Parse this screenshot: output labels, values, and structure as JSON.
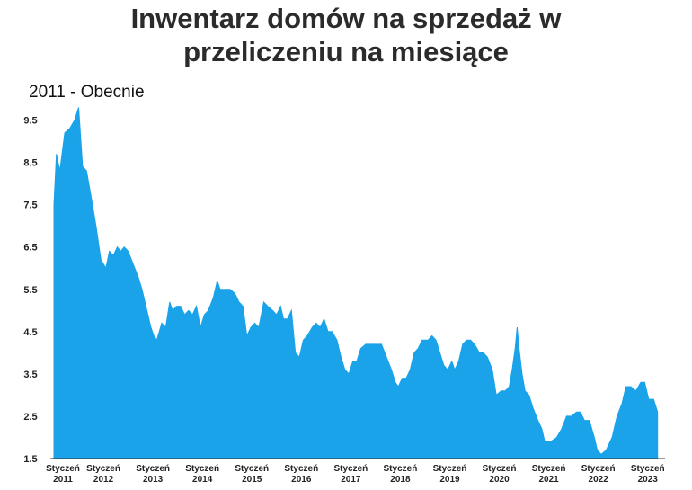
{
  "chart_data": {
    "type": "area",
    "title_lines": [
      "Inwentarz domów na sprzedaż w",
      "przeliczeniu na miesiące"
    ],
    "subtitle": "2011 - Obecnie",
    "xlabel": "",
    "ylabel": "",
    "color": "#1aa3e8",
    "grid": false,
    "x_range": [
      2011.0,
      2023.35
    ],
    "ylim": [
      1.5,
      10.0
    ],
    "y_ticks": [
      1.5,
      2.5,
      3.5,
      4.5,
      5.5,
      6.5,
      7.5,
      8.5,
      9.5
    ],
    "x_ticks": [
      {
        "year": 2011,
        "line1": "Styczeń",
        "line2": "2011"
      },
      {
        "year": 2012,
        "line1": "Styczeń",
        "line2": "2012"
      },
      {
        "year": 2013,
        "line1": "Styczeń",
        "line2": "2013"
      },
      {
        "year": 2014,
        "line1": "Styczeń",
        "line2": "2014"
      },
      {
        "year": 2015,
        "line1": "Styczeń",
        "line2": "2015"
      },
      {
        "year": 2016,
        "line1": "Styczeń",
        "line2": "2016"
      },
      {
        "year": 2017,
        "line1": "Styczeń",
        "line2": "2017"
      },
      {
        "year": 2018,
        "line1": "Styczeń",
        "line2": "2018"
      },
      {
        "year": 2019,
        "line1": "Styczeń",
        "line2": "2019"
      },
      {
        "year": 2020,
        "line1": "Styczeń",
        "line2": "2020"
      },
      {
        "year": 2021,
        "line1": "Styczeń",
        "line2": "2021"
      },
      {
        "year": 2022,
        "line1": "Styczeń",
        "line2": "2022"
      },
      {
        "year": 2023,
        "line1": "Styczeń",
        "line2": "2023"
      }
    ],
    "series": [
      {
        "values": [
          [
            2011.0,
            7.5
          ],
          [
            2011.05,
            8.7
          ],
          [
            2011.12,
            8.3
          ],
          [
            2011.22,
            9.2
          ],
          [
            2011.32,
            9.3
          ],
          [
            2011.42,
            9.5
          ],
          [
            2011.5,
            9.8
          ],
          [
            2011.58,
            8.4
          ],
          [
            2011.66,
            8.3
          ],
          [
            2011.75,
            7.7
          ],
          [
            2011.85,
            7.0
          ],
          [
            2011.95,
            6.2
          ],
          [
            2012.05,
            6.0
          ],
          [
            2012.12,
            6.4
          ],
          [
            2012.2,
            6.3
          ],
          [
            2012.28,
            6.5
          ],
          [
            2012.35,
            6.4
          ],
          [
            2012.42,
            6.5
          ],
          [
            2012.5,
            6.4
          ],
          [
            2012.6,
            6.1
          ],
          [
            2012.7,
            5.8
          ],
          [
            2012.78,
            5.5
          ],
          [
            2012.88,
            5.0
          ],
          [
            2012.96,
            4.6
          ],
          [
            2013.02,
            4.4
          ],
          [
            2013.08,
            4.3
          ],
          [
            2013.18,
            4.7
          ],
          [
            2013.26,
            4.6
          ],
          [
            2013.34,
            5.2
          ],
          [
            2013.4,
            5.0
          ],
          [
            2013.48,
            5.1
          ],
          [
            2013.56,
            5.1
          ],
          [
            2013.64,
            4.9
          ],
          [
            2013.72,
            5.0
          ],
          [
            2013.8,
            4.9
          ],
          [
            2013.88,
            5.1
          ],
          [
            2013.96,
            4.6
          ],
          [
            2014.04,
            4.9
          ],
          [
            2014.12,
            5.0
          ],
          [
            2014.22,
            5.3
          ],
          [
            2014.3,
            5.7
          ],
          [
            2014.36,
            5.5
          ],
          [
            2014.46,
            5.5
          ],
          [
            2014.56,
            5.5
          ],
          [
            2014.66,
            5.4
          ],
          [
            2014.74,
            5.2
          ],
          [
            2014.82,
            5.1
          ],
          [
            2014.9,
            4.4
          ],
          [
            2014.98,
            4.6
          ],
          [
            2015.06,
            4.7
          ],
          [
            2015.14,
            4.6
          ],
          [
            2015.24,
            5.2
          ],
          [
            2015.32,
            5.1
          ],
          [
            2015.42,
            5.0
          ],
          [
            2015.5,
            4.9
          ],
          [
            2015.58,
            5.1
          ],
          [
            2015.64,
            4.8
          ],
          [
            2015.72,
            4.8
          ],
          [
            2015.8,
            5.0
          ],
          [
            2015.88,
            4.0
          ],
          [
            2015.96,
            3.9
          ],
          [
            2016.04,
            4.3
          ],
          [
            2016.12,
            4.4
          ],
          [
            2016.22,
            4.6
          ],
          [
            2016.3,
            4.7
          ],
          [
            2016.38,
            4.6
          ],
          [
            2016.46,
            4.8
          ],
          [
            2016.54,
            4.5
          ],
          [
            2016.62,
            4.5
          ],
          [
            2016.72,
            4.3
          ],
          [
            2016.8,
            3.9
          ],
          [
            2016.88,
            3.6
          ],
          [
            2016.96,
            3.5
          ],
          [
            2017.04,
            3.8
          ],
          [
            2017.12,
            3.8
          ],
          [
            2017.2,
            4.1
          ],
          [
            2017.3,
            4.2
          ],
          [
            2017.42,
            4.2
          ],
          [
            2017.54,
            4.2
          ],
          [
            2017.62,
            4.2
          ],
          [
            2017.72,
            3.9
          ],
          [
            2017.82,
            3.6
          ],
          [
            2017.9,
            3.3
          ],
          [
            2017.96,
            3.2
          ],
          [
            2018.04,
            3.4
          ],
          [
            2018.12,
            3.4
          ],
          [
            2018.2,
            3.6
          ],
          [
            2018.28,
            4.0
          ],
          [
            2018.36,
            4.1
          ],
          [
            2018.44,
            4.3
          ],
          [
            2018.56,
            4.3
          ],
          [
            2018.64,
            4.4
          ],
          [
            2018.72,
            4.3
          ],
          [
            2018.8,
            4.0
          ],
          [
            2018.88,
            3.7
          ],
          [
            2018.96,
            3.6
          ],
          [
            2019.04,
            3.8
          ],
          [
            2019.1,
            3.6
          ],
          [
            2019.18,
            3.8
          ],
          [
            2019.26,
            4.2
          ],
          [
            2019.34,
            4.3
          ],
          [
            2019.42,
            4.3
          ],
          [
            2019.5,
            4.2
          ],
          [
            2019.6,
            4.0
          ],
          [
            2019.68,
            4.0
          ],
          [
            2019.76,
            3.9
          ],
          [
            2019.86,
            3.6
          ],
          [
            2019.94,
            3.0
          ],
          [
            2020.04,
            3.1
          ],
          [
            2020.12,
            3.1
          ],
          [
            2020.2,
            3.2
          ],
          [
            2020.26,
            3.6
          ],
          [
            2020.32,
            4.1
          ],
          [
            2020.36,
            4.6
          ],
          [
            2020.4,
            4.1
          ],
          [
            2020.46,
            3.5
          ],
          [
            2020.52,
            3.1
          ],
          [
            2020.6,
            3.0
          ],
          [
            2020.68,
            2.7
          ],
          [
            2020.78,
            2.4
          ],
          [
            2020.86,
            2.2
          ],
          [
            2020.92,
            1.9
          ],
          [
            2021.04,
            1.9
          ],
          [
            2021.16,
            2.0
          ],
          [
            2021.26,
            2.2
          ],
          [
            2021.36,
            2.5
          ],
          [
            2021.46,
            2.5
          ],
          [
            2021.56,
            2.6
          ],
          [
            2021.64,
            2.6
          ],
          [
            2021.72,
            2.4
          ],
          [
            2021.82,
            2.4
          ],
          [
            2021.92,
            2.0
          ],
          [
            2021.98,
            1.7
          ],
          [
            2022.06,
            1.6
          ],
          [
            2022.16,
            1.7
          ],
          [
            2022.28,
            2.0
          ],
          [
            2022.38,
            2.5
          ],
          [
            2022.48,
            2.8
          ],
          [
            2022.56,
            3.2
          ],
          [
            2022.66,
            3.2
          ],
          [
            2022.76,
            3.1
          ],
          [
            2022.86,
            3.3
          ],
          [
            2022.94,
            3.3
          ],
          [
            2023.02,
            2.9
          ],
          [
            2023.12,
            2.9
          ],
          [
            2023.2,
            2.6
          ]
        ]
      }
    ]
  }
}
